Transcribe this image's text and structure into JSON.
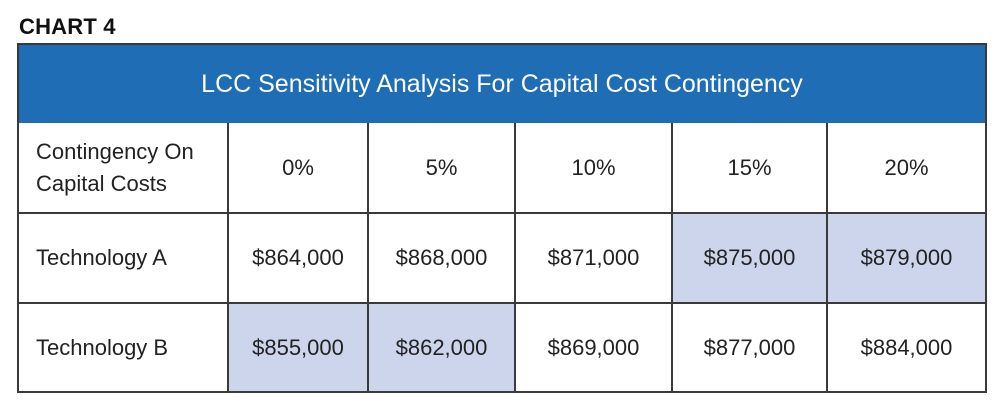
{
  "chart_label": "CHART 4",
  "chart_data": {
    "type": "table",
    "title": "LCC Sensitivity Analysis For Capital Cost Contingency",
    "row_header_label": "Contingency On Capital Costs",
    "columns": [
      "0%",
      "5%",
      "10%",
      "15%",
      "20%"
    ],
    "rows": [
      {
        "label": "Technology A",
        "values": [
          "$864,000",
          "$868,000",
          "$871,000",
          "$875,000",
          "$879,000"
        ],
        "highlighted": [
          false,
          false,
          false,
          true,
          true
        ]
      },
      {
        "label": "Technology B",
        "values": [
          "$855,000",
          "$862,000",
          "$869,000",
          "$877,000",
          "$884,000"
        ],
        "highlighted": [
          true,
          true,
          false,
          false,
          false
        ]
      }
    ],
    "highlight_color": "#cdd5ec",
    "title_bar_color": "#1f6db5"
  }
}
